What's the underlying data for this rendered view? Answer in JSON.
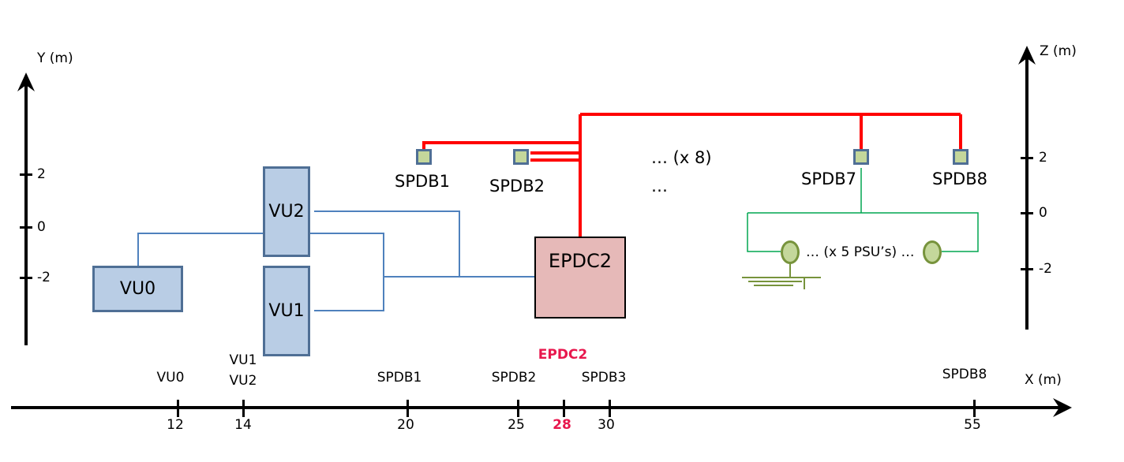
{
  "axes": {
    "y_label": "Y (m)",
    "z_label": "Z (m)",
    "x_label": "X (m)",
    "y_ticks": [
      "2",
      "0",
      "-2"
    ],
    "z_ticks": [
      "2",
      "0",
      "-2"
    ],
    "x_ticks": [
      "12",
      "14",
      "20",
      "25",
      "28",
      "30",
      "55"
    ]
  },
  "x_markers": {
    "vu0": "VU0",
    "vu1": "VU1",
    "vu2": "VU2",
    "spdb1": "SPDB1",
    "spdb2": "SPDB2",
    "epdc2": "EPDC2",
    "spdb3": "SPDB3",
    "spdb8": "SPDB8"
  },
  "units": {
    "vu0": "VU0",
    "vu1": "VU1",
    "vu2": "VU2",
    "epdc2": "EPDC2"
  },
  "spdbs": {
    "spdb1": "SPDB1",
    "spdb2": "SPDB2",
    "spdb7": "SPDB7",
    "spdb8": "SPDB8"
  },
  "notes": {
    "x8": "… (x 8)",
    "ellipsis": "…",
    "psu": "… (x 5 PSU’s) …"
  },
  "colors": {
    "power_line": "#ff0000",
    "data_line": "#4f81bd",
    "psu_line": "#00a651",
    "highlight": "#e8174d",
    "vu_fill": "#b9cde5",
    "epdc_fill": "#e6b9b8",
    "spdb_fill": "#c4d79b",
    "ground": "#77933c"
  }
}
